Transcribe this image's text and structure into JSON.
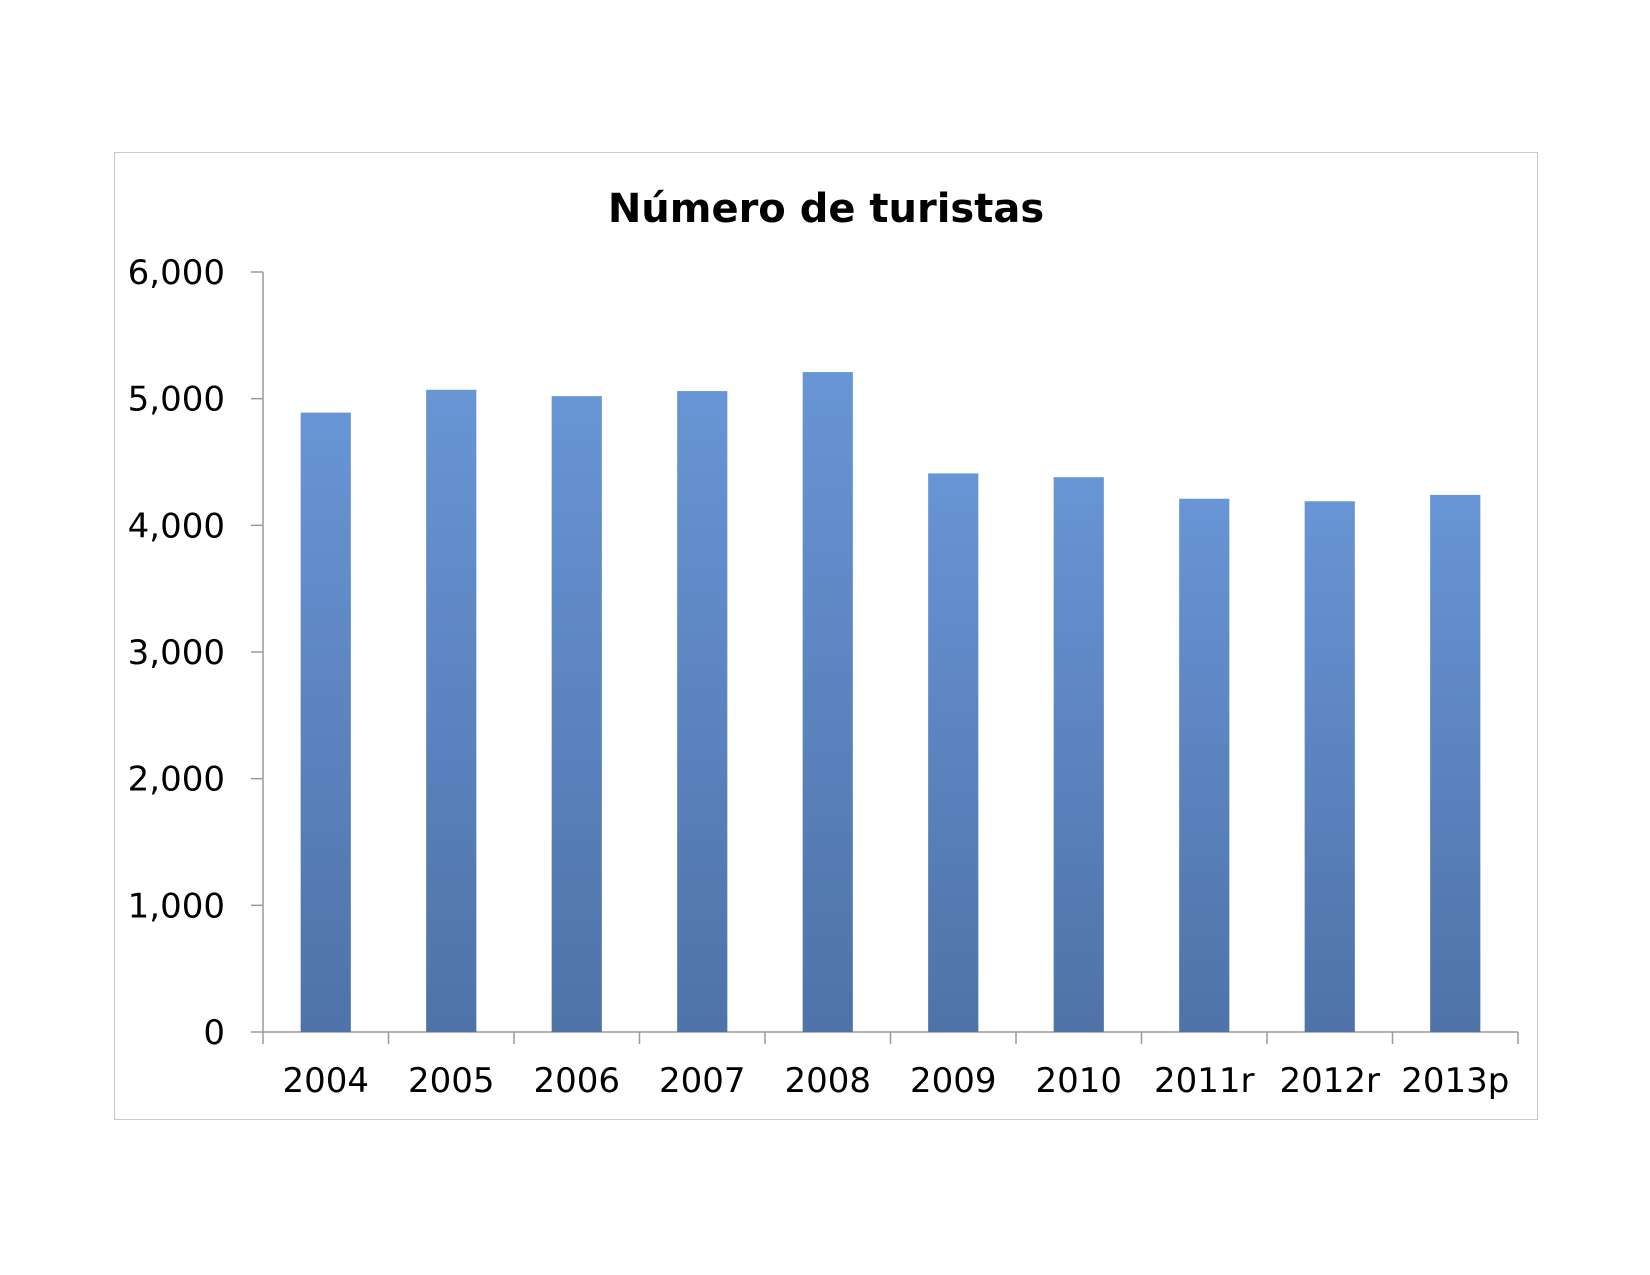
{
  "chart_data": {
    "type": "bar",
    "title": "Número de turistas",
    "xlabel": "",
    "ylabel": "",
    "categories": [
      "2004",
      "2005",
      "2006",
      "2007",
      "2008",
      "2009",
      "2010",
      "2011r",
      "2012r",
      "2013p"
    ],
    "values": [
      4890,
      5070,
      5020,
      5060,
      5210,
      4410,
      4380,
      4210,
      4190,
      4240
    ],
    "ylim": [
      0,
      6000
    ],
    "yticks": [
      "0",
      "1,000",
      "2,000",
      "3,000",
      "4,000",
      "5,000",
      "6,000"
    ],
    "ytick_values": [
      0,
      1000,
      2000,
      3000,
      4000,
      5000,
      6000
    ],
    "grid": false,
    "legend": "none",
    "colors": {
      "bar_top": "#6895D5",
      "bar_bottom": "#4F72A8",
      "axis": "#9a9a9a",
      "frame": "#c9c9c9"
    }
  }
}
